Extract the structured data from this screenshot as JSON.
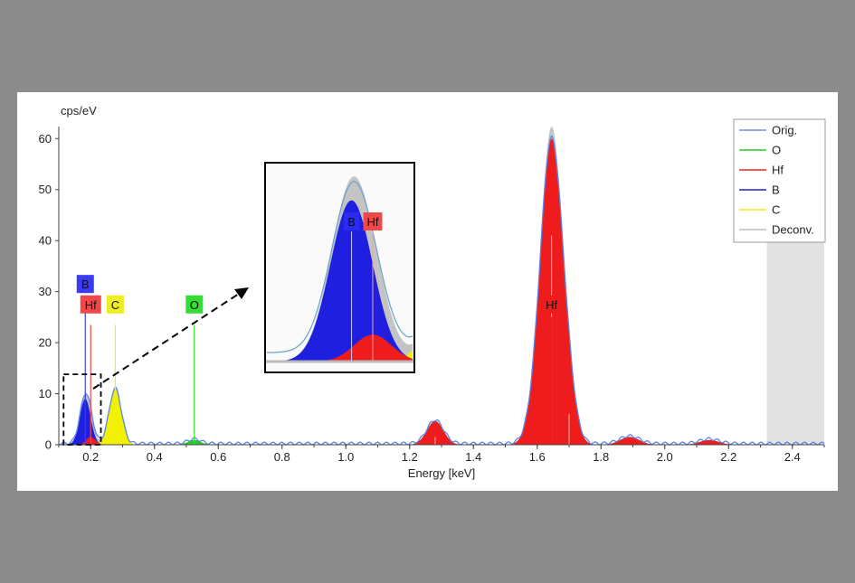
{
  "chart_data": {
    "type": "area",
    "ylabel": "cps/eV",
    "xlabel": "Energy [keV]",
    "xlim": [
      0.1,
      2.5
    ],
    "ylim": [
      0,
      62
    ],
    "x_ticks": [
      0.2,
      0.4,
      0.6,
      0.8,
      1.0,
      1.2,
      1.4,
      1.6,
      1.8,
      2.0,
      2.2,
      2.4
    ],
    "x_tick_labels": [
      "0.2",
      "0.4",
      "0.6",
      "0.8",
      "1.0",
      "1.2",
      "1.4",
      "1.6",
      "1.8",
      "2.0",
      "2.2",
      "2.4"
    ],
    "y_ticks": [
      0,
      10,
      20,
      30,
      40,
      50,
      60
    ],
    "y_tick_labels": [
      "0",
      "10",
      "20",
      "30",
      "40",
      "50",
      "60"
    ],
    "grid": false,
    "legend_position": "top-right",
    "legend": [
      {
        "label": "Orig.",
        "color": "#6b8fe0"
      },
      {
        "label": "O",
        "color": "#22cc22"
      },
      {
        "label": "Hf",
        "color": "#ee2222"
      },
      {
        "label": "B",
        "color": "#2222cc"
      },
      {
        "label": "C",
        "color": "#e8e820"
      },
      {
        "label": "Deconv.",
        "color": "#bdbdbd"
      }
    ],
    "shaded_region_x": [
      2.32,
      2.5
    ],
    "series": [
      {
        "name": "B",
        "color": "#1f1fe0",
        "peaks": [
          {
            "center": 0.183,
            "height": 9.0,
            "sigma": 0.017
          }
        ]
      },
      {
        "name": "C",
        "color": "#f2f200",
        "peaks": [
          {
            "center": 0.277,
            "height": 10.8,
            "sigma": 0.019
          }
        ]
      },
      {
        "name": "O",
        "color": "#22cc22",
        "peaks": [
          {
            "center": 0.525,
            "height": 0.9,
            "sigma": 0.02
          }
        ]
      },
      {
        "name": "Hf",
        "color": "#ee1c1c",
        "peaks": [
          {
            "center": 0.2,
            "height": 1.5,
            "sigma": 0.015
          },
          {
            "center": 1.28,
            "height": 4.6,
            "sigma": 0.026
          },
          {
            "center": 1.645,
            "height": 59.8,
            "sigma": 0.036
          },
          {
            "center": 1.7,
            "height": 3.2,
            "sigma": 0.022
          },
          {
            "center": 1.89,
            "height": 1.5,
            "sigma": 0.03
          },
          {
            "center": 2.14,
            "height": 0.9,
            "sigma": 0.03
          }
        ]
      }
    ],
    "peak_labels": [
      {
        "text": "B",
        "x": 0.183,
        "color": "#3b3bf0",
        "label_y": 31.5,
        "line_top": 27.5
      },
      {
        "text": "Hf",
        "x": 0.2,
        "color": "#f04848",
        "label_y": 27.5,
        "line_top": 23.5
      },
      {
        "text": "C",
        "x": 0.277,
        "color": "#eeee20",
        "label_y": 27.5,
        "line_top": 23.5
      },
      {
        "text": "O",
        "x": 0.525,
        "color": "#33dd33",
        "label_y": 27.5,
        "line_top": 23.5
      },
      {
        "text": "Hf",
        "x": 1.645,
        "color": "#ee1c1c",
        "label_y": 27.5,
        "line_top": 25
      }
    ],
    "inset": {
      "xlim": [
        0.115,
        0.232
      ],
      "ylim": [
        0,
        10.5
      ],
      "labels": [
        {
          "text": "B",
          "x": 0.183,
          "color": "#2a2af0"
        },
        {
          "text": "Hf",
          "x": 0.2,
          "color": "#f04848"
        }
      ]
    }
  }
}
